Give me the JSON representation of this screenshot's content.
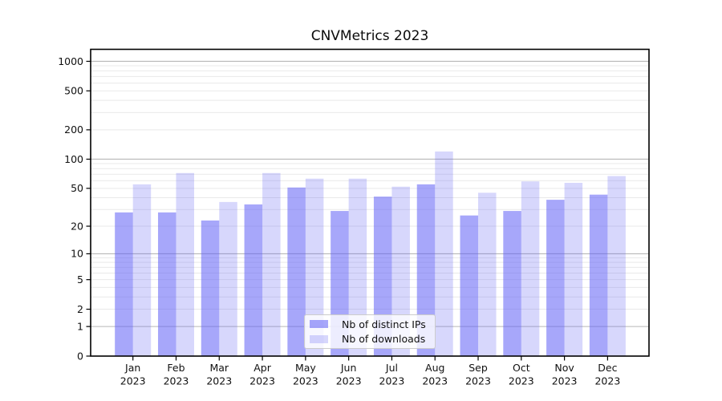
{
  "chart_data": {
    "type": "bar",
    "title": "CNVMetrics 2023",
    "categories": [
      "Jan",
      "Feb",
      "Mar",
      "Apr",
      "May",
      "Jun",
      "Jul",
      "Aug",
      "Sep",
      "Oct",
      "Nov",
      "Dec"
    ],
    "category_year": "2023",
    "series": [
      {
        "name": "Nb of distinct IPs",
        "color": "rgba(95,95,245,0.55)",
        "values": [
          28,
          28,
          23,
          34,
          51,
          29,
          41,
          55,
          26,
          29,
          38,
          43
        ]
      },
      {
        "name": "Nb of downloads",
        "color": "rgba(95,95,245,0.25)",
        "values": [
          55,
          72,
          36,
          72,
          63,
          63,
          52,
          120,
          45,
          59,
          57,
          67
        ]
      }
    ],
    "yscale": "log1p",
    "ylim": [
      0,
      1400
    ],
    "yticks": [
      0,
      1,
      2,
      5,
      10,
      20,
      50,
      100,
      200,
      500,
      1000
    ],
    "major_gridlines": [
      1,
      10,
      100,
      1000
    ],
    "grid": true,
    "legend_position": "inside bottom-center",
    "xlabel": "",
    "ylabel": ""
  },
  "colors": {
    "major_grid": "#b8b8b8",
    "minor_grid": "#e9e9e9",
    "axis_frame": "#000000",
    "tick_text": "#111111"
  }
}
